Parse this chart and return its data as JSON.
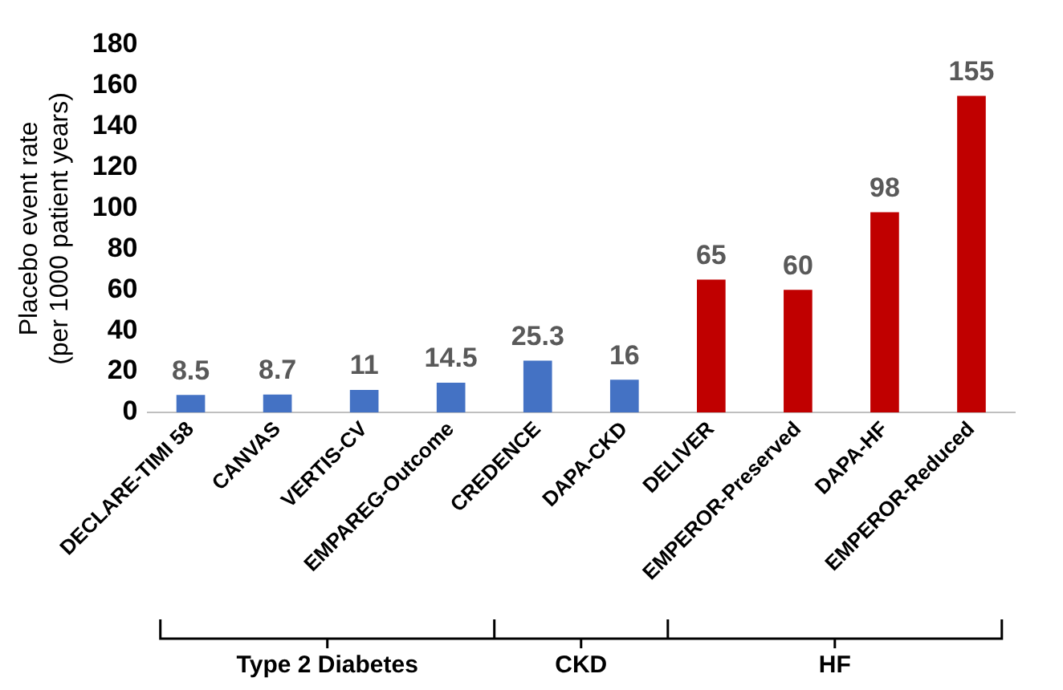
{
  "chart_data": {
    "type": "bar",
    "ylabel": "Placebo event rate\n(per 1000 patient years)",
    "categories": [
      "DECLARE-TIMI 58",
      "CANVAS",
      "VERTIS-CV",
      "EMPAREG-Outcome",
      "CREDENCE",
      "DAPA-CKD",
      "DELIVER",
      "EMPEROR-Preserved",
      "DAPA-HF",
      "EMPEROR-Reduced"
    ],
    "values": [
      8.5,
      8.7,
      11,
      14.5,
      25.3,
      16,
      65,
      60,
      98,
      155
    ],
    "colors": [
      "#4472c4",
      "#4472c4",
      "#4472c4",
      "#4472c4",
      "#4472c4",
      "#4472c4",
      "#c00000",
      "#c00000",
      "#c00000",
      "#c00000"
    ],
    "ylim": [
      0,
      180
    ],
    "yticks": [
      0,
      20,
      40,
      60,
      80,
      100,
      120,
      140,
      160,
      180
    ],
    "grid": false,
    "legend": false,
    "data_labels": true,
    "annotations": [
      "Type 2 Diabetes",
      "CKD",
      "HF"
    ]
  }
}
